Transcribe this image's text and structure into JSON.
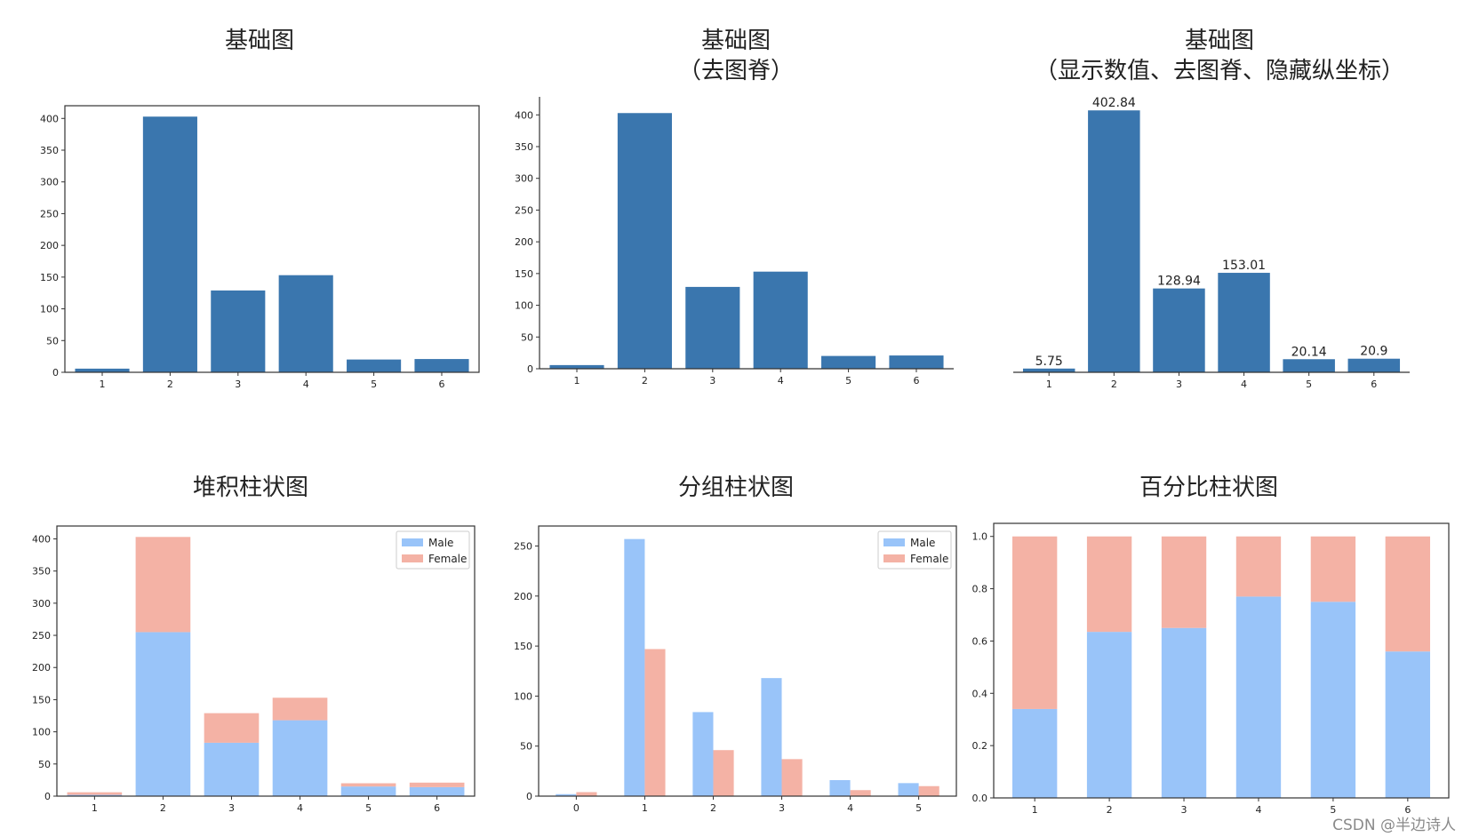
{
  "watermark": "CSDN @半边诗人",
  "colors": {
    "bar": "#3a76ae",
    "male": "#99c4f9",
    "female": "#f4b2a5"
  },
  "chart_data": [
    {
      "type": "bar",
      "title": [
        "基础图"
      ],
      "categories": [
        "1",
        "2",
        "3",
        "4",
        "5",
        "6"
      ],
      "values": [
        5.75,
        402.84,
        128.94,
        153.01,
        20.14,
        20.9
      ],
      "ylim": [
        0,
        420
      ],
      "yticks": [
        0,
        50,
        100,
        150,
        200,
        250,
        300,
        350,
        400
      ],
      "spines": "all"
    },
    {
      "type": "bar",
      "title": [
        "基础图",
        "（去图脊）"
      ],
      "categories": [
        "1",
        "2",
        "3",
        "4",
        "5",
        "6"
      ],
      "values": [
        5.75,
        402.84,
        128.94,
        153.01,
        20.14,
        20.9
      ],
      "ylim": [
        0,
        420
      ],
      "yticks": [
        0,
        50,
        100,
        150,
        200,
        250,
        300,
        350,
        400
      ],
      "spines": "left-bottom"
    },
    {
      "type": "bar",
      "title": [
        "基础图",
        "（显示数值、去图脊、隐藏纵坐标）"
      ],
      "categories": [
        "1",
        "2",
        "3",
        "4",
        "5",
        "6"
      ],
      "values": [
        5.75,
        402.84,
        128.94,
        153.01,
        20.14,
        20.9
      ],
      "data_labels": [
        "5.75",
        "402.84",
        "128.94",
        "153.01",
        "20.14",
        "20.9"
      ],
      "ylim": [
        0,
        410
      ],
      "spines": "bottom"
    },
    {
      "type": "stacked-bar",
      "title": [
        "堆积柱状图"
      ],
      "categories": [
        "1",
        "2",
        "3",
        "4",
        "5",
        "6"
      ],
      "series": [
        {
          "name": "Male",
          "values": [
            2,
            255,
            83,
            118,
            15,
            14
          ]
        },
        {
          "name": "Female",
          "values": [
            4,
            148,
            46,
            35,
            5,
            7
          ]
        }
      ],
      "ylim": [
        0,
        420
      ],
      "yticks": [
        0,
        50,
        100,
        150,
        200,
        250,
        300,
        350,
        400
      ],
      "legend": "top-right"
    },
    {
      "type": "grouped-bar",
      "title": [
        "分组柱状图"
      ],
      "categories": [
        "0",
        "1",
        "2",
        "3",
        "4",
        "5"
      ],
      "series": [
        {
          "name": "Male",
          "values": [
            2,
            257,
            84,
            118,
            16,
            13
          ]
        },
        {
          "name": "Female",
          "values": [
            4,
            147,
            46,
            37,
            6,
            10
          ]
        }
      ],
      "ylim": [
        0,
        270
      ],
      "yticks": [
        0,
        50,
        100,
        150,
        200,
        250
      ],
      "legend": "top-right"
    },
    {
      "type": "percent-stacked-bar",
      "title": [
        "百分比柱状图"
      ],
      "categories": [
        "1",
        "2",
        "3",
        "4",
        "5",
        "6"
      ],
      "series": [
        {
          "name": "Male",
          "values": [
            0.34,
            0.635,
            0.65,
            0.77,
            0.75,
            0.56
          ]
        },
        {
          "name": "Female",
          "values": [
            0.66,
            0.365,
            0.35,
            0.23,
            0.25,
            0.44
          ]
        }
      ],
      "ylim": [
        0,
        1.05
      ],
      "yticks": [
        "0.0",
        "0.2",
        "0.4",
        "0.6",
        "0.8",
        "1.0"
      ]
    }
  ]
}
